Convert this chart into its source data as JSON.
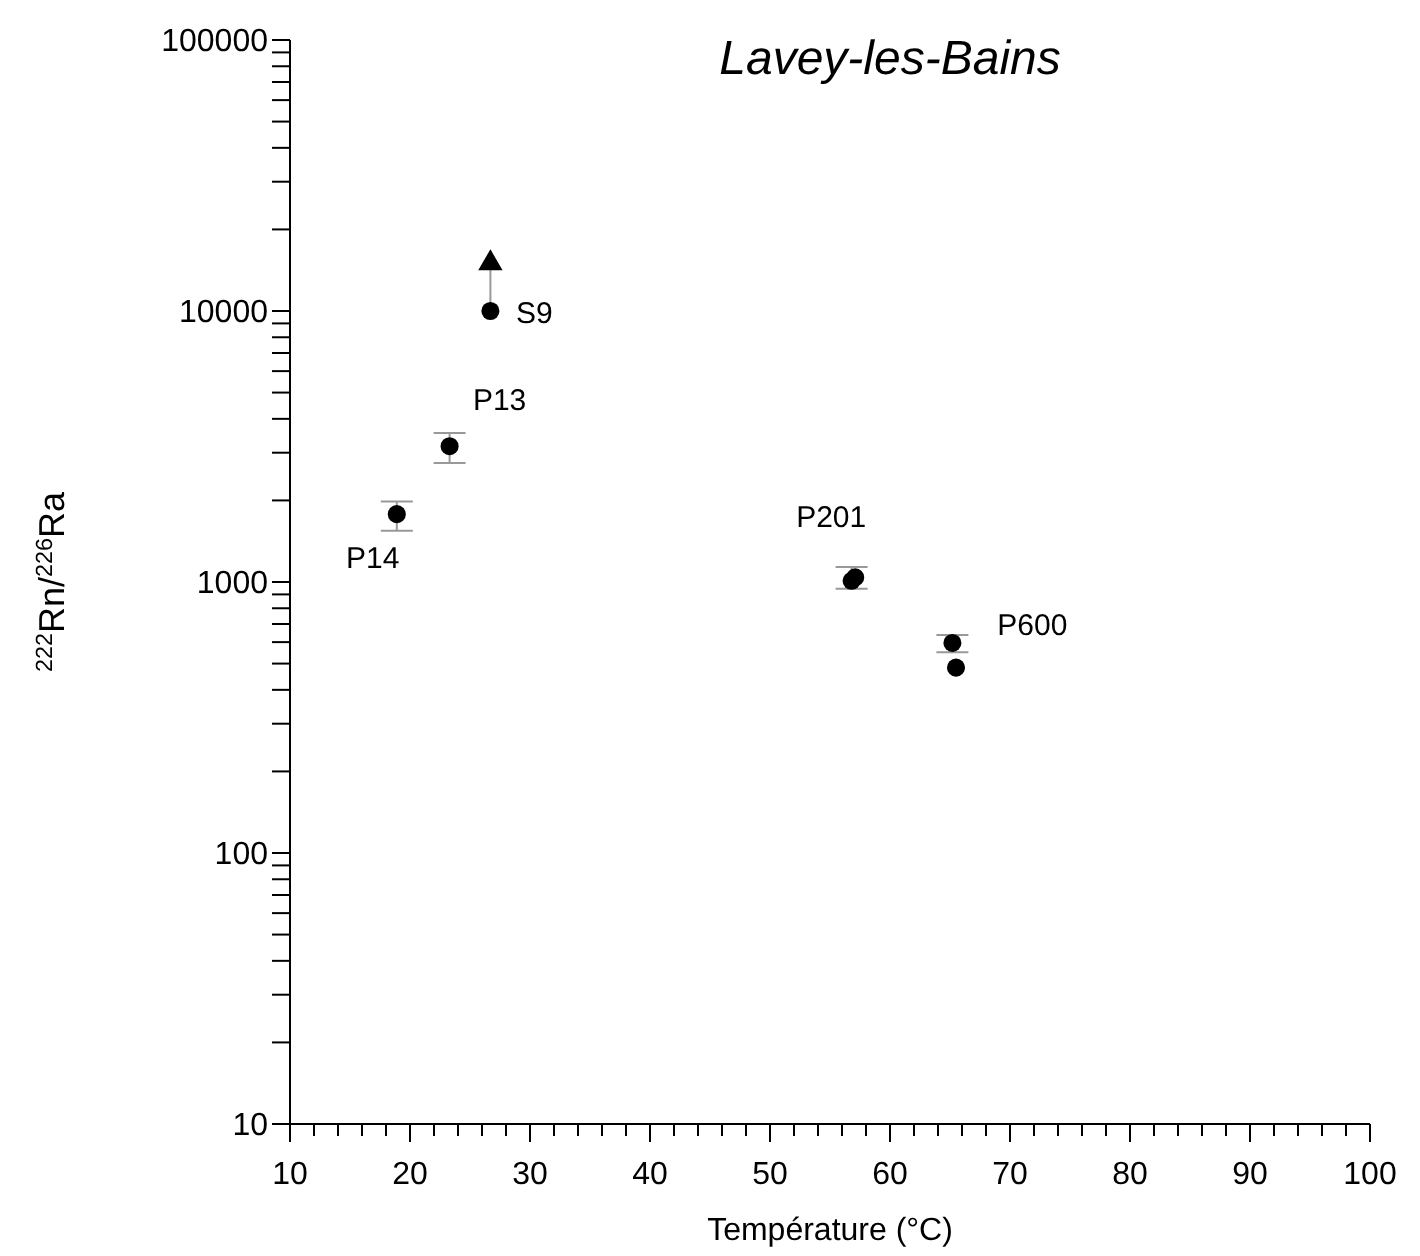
{
  "chart_data": {
    "type": "scatter",
    "title": "Lavey-les-Bains",
    "xlabel": "Température  (°C)",
    "ylabel": "$^{222}$Rn/$^{226}$Ra",
    "log": "y",
    "grid": false,
    "xlim": [
      10,
      100
    ],
    "ylim": [
      10,
      100000
    ],
    "xticks": [
      10,
      {
        "value": 12,
        "label": null
      },
      {
        "value": 14,
        "label": null
      },
      {
        "value": 16,
        "label": null
      },
      {
        "value": 18,
        "label": null
      },
      20,
      {
        "value": 22,
        "label": null
      },
      {
        "value": 24,
        "label": null
      },
      {
        "value": 26,
        "label": null
      },
      {
        "value": 28,
        "label": null
      },
      30,
      {
        "value": 32,
        "label": null
      },
      {
        "value": 34,
        "label": null
      },
      {
        "value": 36,
        "label": null
      },
      {
        "value": 38,
        "label": null
      },
      40,
      {
        "value": 42,
        "label": null
      },
      {
        "value": 44,
        "label": null
      },
      {
        "value": 46,
        "label": null
      },
      {
        "value": 48,
        "label": null
      },
      50,
      {
        "value": 52,
        "label": null
      },
      {
        "value": 54,
        "label": null
      },
      {
        "value": 56,
        "label": null
      },
      {
        "value": 58,
        "label": null
      },
      60,
      {
        "value": 62,
        "label": null
      },
      {
        "value": 64,
        "label": null
      },
      {
        "value": 66,
        "label": null
      },
      {
        "value": 68,
        "label": null
      },
      70,
      {
        "value": 72,
        "label": null
      },
      {
        "value": 74,
        "label": null
      },
      {
        "value": 76,
        "label": null
      },
      {
        "value": 78,
        "label": null
      },
      80,
      {
        "value": 82,
        "label": null
      },
      {
        "value": 84,
        "label": null
      },
      {
        "value": 86,
        "label": null
      },
      {
        "value": 88,
        "label": null
      },
      90,
      {
        "value": 92,
        "label": null
      },
      {
        "value": 94,
        "label": null
      },
      {
        "value": 96,
        "label": null
      },
      {
        "value": 98,
        "label": null
      },
      100
    ],
    "yticks": [
      10,
      {
        "value": 20,
        "label": null
      },
      {
        "value": 30,
        "label": null
      },
      {
        "value": 40,
        "label": null
      },
      {
        "value": 50,
        "label": null
      },
      {
        "value": 60,
        "label": null
      },
      {
        "value": 70,
        "label": null
      },
      {
        "value": 80,
        "label": null
      },
      {
        "value": 90,
        "label": null
      },
      100,
      {
        "value": 200,
        "label": null
      },
      {
        "value": 300,
        "label": null
      },
      {
        "value": 400,
        "label": null
      },
      {
        "value": 500,
        "label": null
      },
      {
        "value": 600,
        "label": null
      },
      {
        "value": 700,
        "label": null
      },
      {
        "value": 800,
        "label": null
      },
      {
        "value": 900,
        "label": null
      },
      1000,
      {
        "value": 2000,
        "label": null
      },
      {
        "value": 3000,
        "label": null
      },
      {
        "value": 4000,
        "label": null
      },
      {
        "value": 5000,
        "label": null
      },
      {
        "value": 6000,
        "label": null
      },
      {
        "value": 7000,
        "label": null
      },
      {
        "value": 8000,
        "label": null
      },
      {
        "value": 9000,
        "label": null
      },
      10000,
      {
        "value": 20000,
        "label": null
      },
      {
        "value": 30000,
        "label": null
      },
      {
        "value": 40000,
        "label": null
      },
      {
        "value": 50000,
        "label": null
      },
      {
        "value": 60000,
        "label": null
      },
      {
        "value": 70000,
        "label": null
      },
      {
        "value": 80000,
        "label": null
      },
      {
        "value": 90000,
        "label": null
      },
      100000
    ],
    "series": [
      {
        "type": "line",
        "color": "#999999",
        "marker": "none",
        "x": [
          26.7,
          26.7
        ],
        "values": [
          10000,
          15000
        ]
      },
      {
        "type": "scatter",
        "color": "#000000",
        "marker": "circle",
        "x": [
          18.9,
          23.3,
          26.7,
          56.8,
          57.1,
          65.2,
          65.5
        ],
        "values": [
          1780,
          3170,
          10000,
          1010,
          1040,
          596,
          483
        ],
        "errors": [
          [
            1545,
            1980
          ],
          [
            2750,
            3550
          ],
          null,
          [
            944,
            1137
          ],
          null,
          [
            551,
            638
          ],
          null
        ]
      },
      {
        "type": "scatter",
        "color": "#000000",
        "marker": "triangle",
        "x": [
          26.7
        ],
        "values": [
          15000
        ]
      }
    ],
    "annotations": [
      {
        "text": "P14",
        "x": 18.9,
        "y": 1780
      },
      {
        "text": "P13",
        "x": 23.3,
        "y": 3170
      },
      {
        "text": "S9",
        "x": 26.7,
        "y": 10000
      },
      {
        "text": "P201",
        "x": 57.1,
        "y": 1040
      },
      {
        "text": "P600",
        "x": 65.2,
        "y": 596
      }
    ]
  }
}
